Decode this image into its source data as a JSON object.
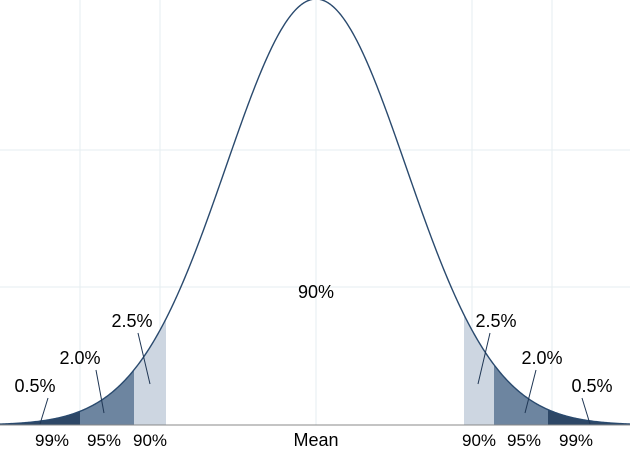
{
  "chart_data": {
    "type": "area",
    "curve": "normal distribution",
    "center_label": "Mean",
    "center_percent": "90%",
    "left_tail_labels": [
      "0.5%",
      "2.0%",
      "2.5%"
    ],
    "right_tail_labels": [
      "2.5%",
      "2.0%",
      "0.5%"
    ],
    "left_axis_labels": [
      "99%",
      "95%",
      "90%"
    ],
    "right_axis_labels": [
      "90%",
      "95%",
      "99%"
    ],
    "grid": true,
    "colors": {
      "curve": "#2a4a6e",
      "band_outer": "#2d4766",
      "band_middle": "#6d85a0",
      "band_inner": "#cdd6e1",
      "grid": "#e6eef0"
    }
  }
}
